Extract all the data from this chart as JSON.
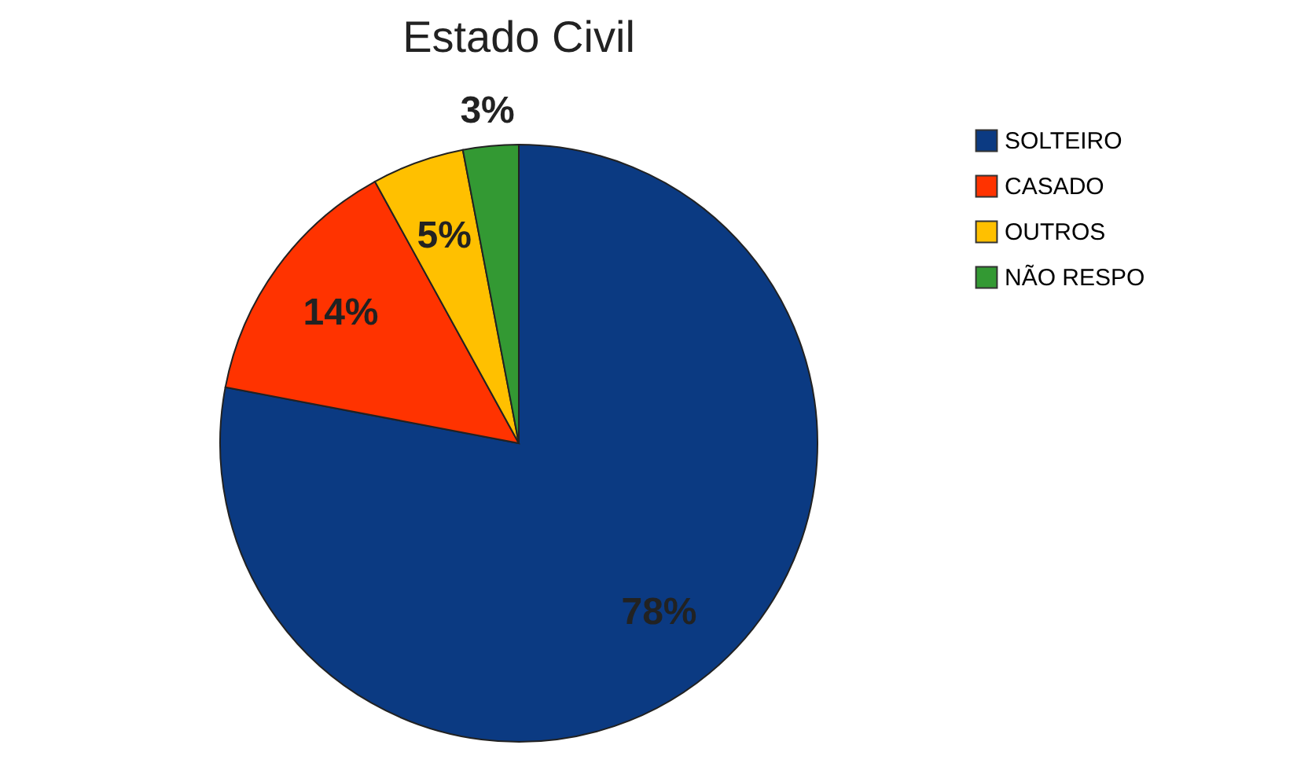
{
  "chart_data": {
    "type": "pie",
    "title": "Estado Civil",
    "categories": [
      "SOLTEIRO",
      "CASADO",
      "OUTROS",
      "NÃO RESPO"
    ],
    "values": [
      78,
      14,
      5,
      3
    ],
    "value_labels": [
      "78%",
      "14%",
      "5%",
      "3%"
    ],
    "colors": [
      "#0b3a82",
      "#ff3300",
      "#ffc000",
      "#339933"
    ],
    "legend": "right"
  }
}
